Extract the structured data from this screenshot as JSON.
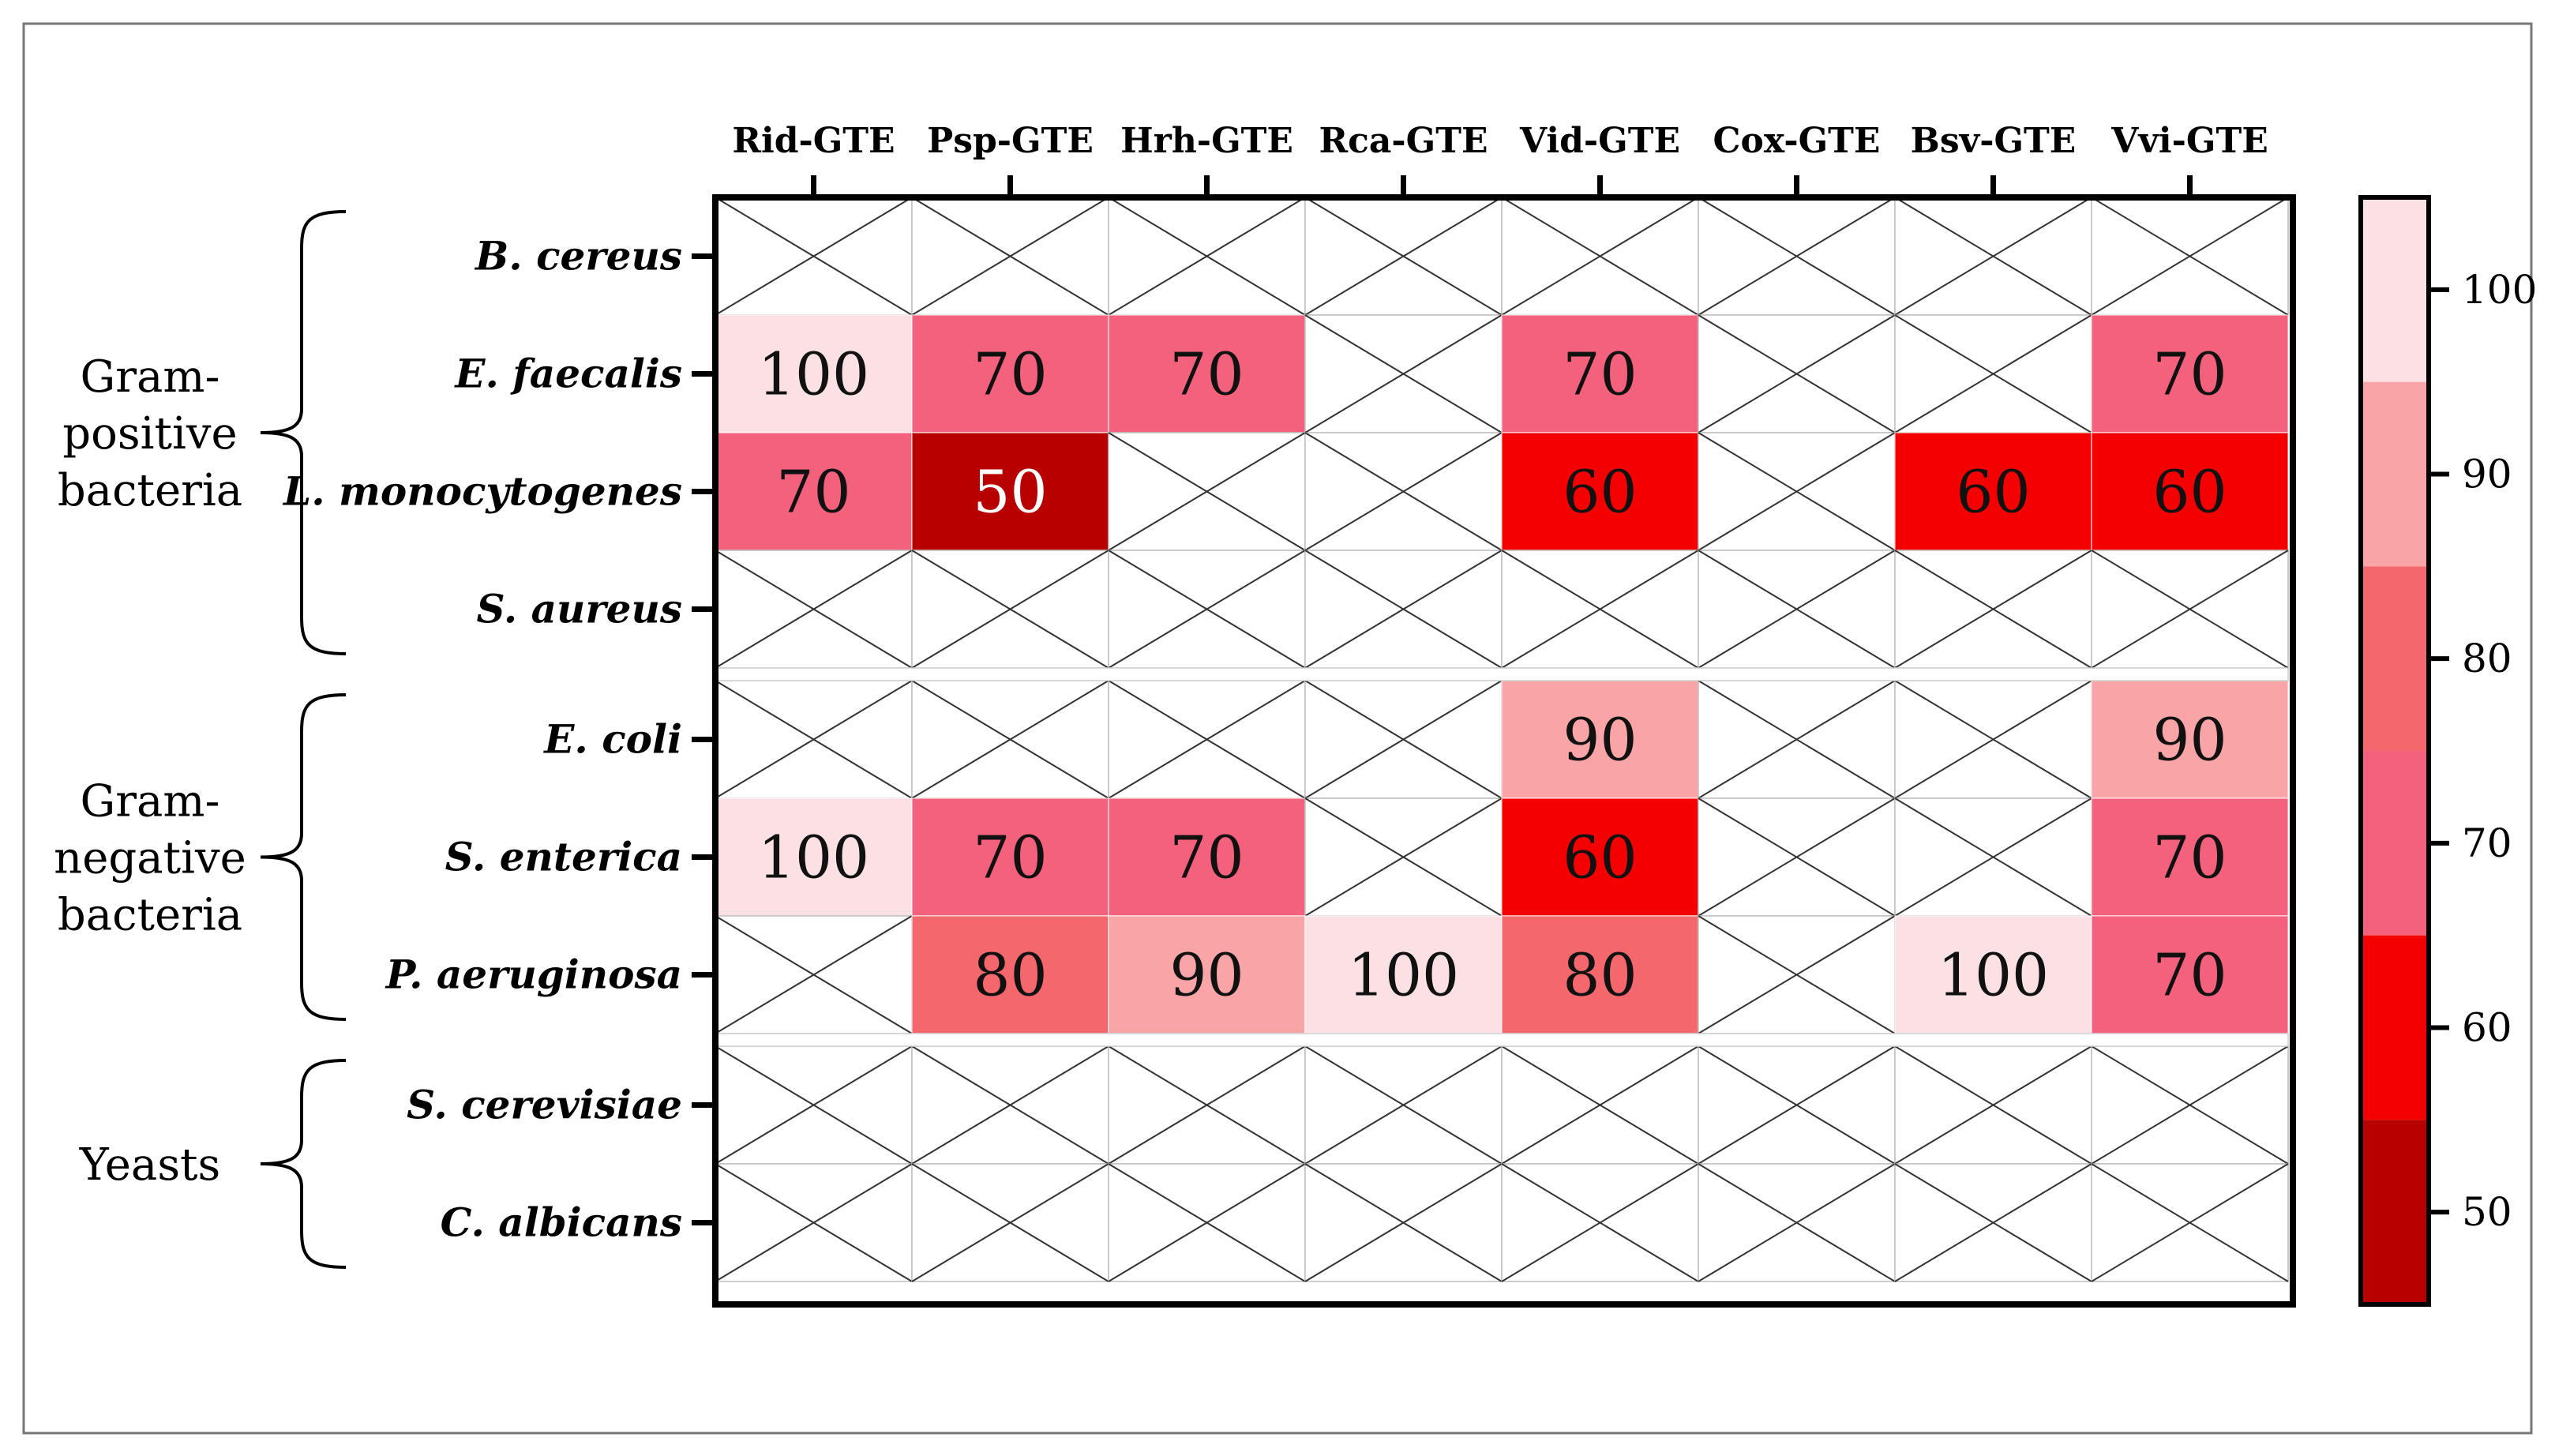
{
  "chart_data": {
    "type": "heatmap",
    "title": "",
    "xlabel": "",
    "ylabel": "",
    "columns": [
      "Rid-GTE",
      "Psp-GTE",
      "Hrh-GTE",
      "Rca-GTE",
      "Vid-GTE",
      "Cox-GTE",
      "Bsv-GTE",
      "Vvi-GTE"
    ],
    "rows": [
      {
        "label": "B. cereus",
        "values": [
          null,
          null,
          null,
          null,
          null,
          null,
          null,
          null
        ]
      },
      {
        "label": "E. faecalis",
        "values": [
          100,
          70,
          70,
          null,
          70,
          null,
          null,
          70
        ]
      },
      {
        "label": "L. monocytogenes",
        "values": [
          70,
          50,
          null,
          null,
          60,
          null,
          60,
          60
        ]
      },
      {
        "label": "S. aureus",
        "values": [
          null,
          null,
          null,
          null,
          null,
          null,
          null,
          null
        ]
      },
      {
        "label": "E. coli",
        "values": [
          null,
          null,
          null,
          null,
          90,
          null,
          null,
          90
        ]
      },
      {
        "label": "S. enterica",
        "values": [
          100,
          70,
          70,
          null,
          60,
          null,
          null,
          70
        ]
      },
      {
        "label": "P. aeruginosa",
        "values": [
          null,
          80,
          90,
          100,
          80,
          null,
          100,
          70
        ]
      },
      {
        "label": "S. cerevisiae",
        "values": [
          null,
          null,
          null,
          null,
          null,
          null,
          null,
          null
        ]
      },
      {
        "label": "C. albicans",
        "values": [
          null,
          null,
          null,
          null,
          null,
          null,
          null,
          null
        ]
      }
    ],
    "groups": [
      {
        "label": "Gram-positive bacteria",
        "lines": [
          "Gram-",
          "positive",
          "bacteria"
        ],
        "rows": [
          0,
          3
        ]
      },
      {
        "label": "Gram-negative bacteria",
        "lines": [
          "Gram-",
          "negative",
          "bacteria"
        ],
        "rows": [
          4,
          6
        ]
      },
      {
        "label": "Yeasts",
        "lines": [
          "Yeasts"
        ],
        "rows": [
          7,
          8
        ]
      }
    ],
    "colorscale": {
      "bins": [
        {
          "value": 100,
          "color": "#fbe1e4"
        },
        {
          "value": 90,
          "color": "#f9a4a7"
        },
        {
          "value": 80,
          "color": "#f4686d"
        },
        {
          "value": 70,
          "color": "#f3617c"
        },
        {
          "value": 60,
          "color": "#f50000"
        },
        {
          "value": 50,
          "color": "#b80000"
        }
      ],
      "ticks": [
        100,
        90,
        80,
        70,
        60,
        50
      ],
      "range": [
        45,
        105
      ]
    },
    "empty_cell": "crossed",
    "value_text_colors": {
      "default": "#111111",
      "darkest": "#ffffff"
    }
  }
}
